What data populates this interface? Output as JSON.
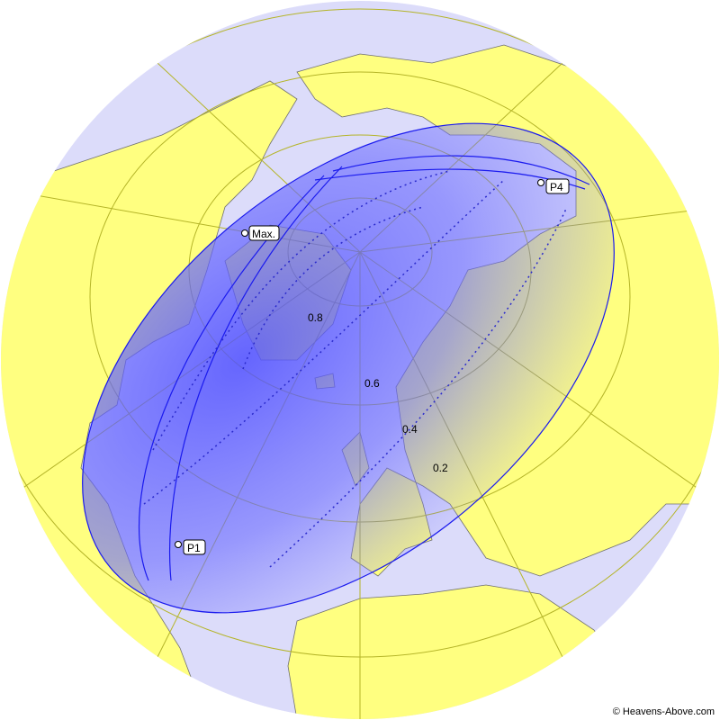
{
  "map": {
    "colors": {
      "ocean": "#dcdcfa",
      "land": "#ffff80",
      "border": "#707070",
      "graticule": "#b4b428",
      "eclipse": "#3a3aff",
      "eclipse_outline": "#1a1aee"
    },
    "contour_labels": [
      "0.8",
      "0.6",
      "0.4",
      "0.2"
    ],
    "points": [
      {
        "label": "Max."
      },
      {
        "label": "P1"
      },
      {
        "label": "P4"
      }
    ]
  },
  "credit": "© Heavens-Above.com"
}
